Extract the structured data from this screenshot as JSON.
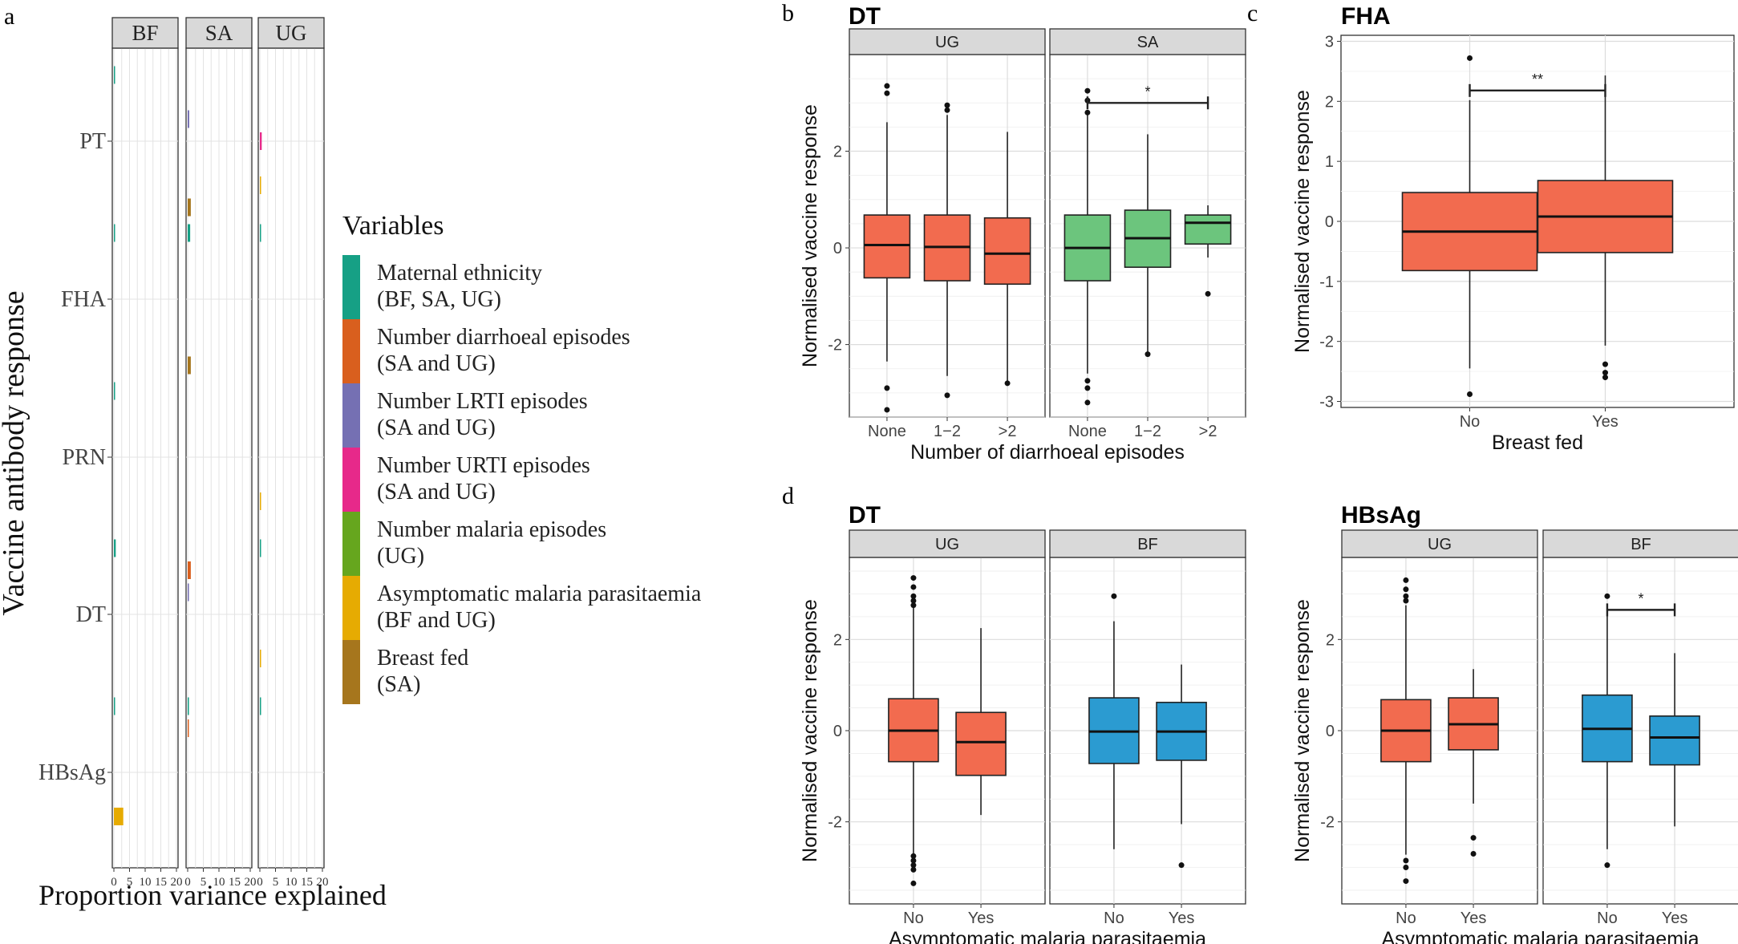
{
  "panel_labels": {
    "a": "a",
    "b": "b",
    "c": "c",
    "d": "d"
  },
  "colors": {
    "maternal_ethnicity": "#16a085",
    "diarrhoeal": "#d95f1e",
    "lrti": "#7570b3",
    "urti": "#e7298a",
    "malaria_episodes": "#66a61e",
    "asym_malaria": "#e6ab02",
    "breast_fed": "#a6761d",
    "box_red": "#f26b4f",
    "box_green": "#6cc57d",
    "box_blue": "#2b9bd1"
  },
  "chart_data": [
    {
      "id": "a",
      "type": "bar",
      "orientation": "horizontal",
      "facets": [
        "BF",
        "SA",
        "UG"
      ],
      "categories": [
        "PT",
        "FHA",
        "PRN",
        "DT",
        "HBsAg"
      ],
      "xlabel": "Proportion variance explained",
      "ylabel": "Vaccine antibody response",
      "xticks": [
        "0",
        "5",
        "10",
        "15",
        "20"
      ],
      "xlim": [
        0,
        20
      ],
      "legend_title": "Variables",
      "legend": [
        {
          "line1": "Maternal ethnicity",
          "line2": "(BF, SA, UG)",
          "color_key": "maternal_ethnicity"
        },
        {
          "line1": "Number diarrhoeal episodes",
          "line2": "(SA and UG)",
          "color_key": "diarrhoeal"
        },
        {
          "line1": "Number LRTI episodes",
          "line2": "(SA and UG)",
          "color_key": "lrti"
        },
        {
          "line1": "Number URTI episodes",
          "line2": "(SA and UG)",
          "color_key": "urti"
        },
        {
          "line1": "Number malaria episodes",
          "line2": "(UG)",
          "color_key": "malaria_episodes"
        },
        {
          "line1": "Asymptomatic malaria parasitaemia",
          "line2": "(BF and UG)",
          "color_key": "asym_malaria"
        },
        {
          "line1": "Breast fed",
          "line2": "(SA)",
          "color_key": "breast_fed"
        }
      ],
      "bars": [
        {
          "facet": "BF",
          "category": "PT",
          "var": "maternal_ethnicity",
          "value": 0.2
        },
        {
          "facet": "BF",
          "category": "FHA",
          "var": "maternal_ethnicity",
          "value": 0.2
        },
        {
          "facet": "BF",
          "category": "PRN",
          "var": "maternal_ethnicity",
          "value": 0.2
        },
        {
          "facet": "BF",
          "category": "DT",
          "var": "maternal_ethnicity",
          "value": 0.6
        },
        {
          "facet": "BF",
          "category": "HBsAg",
          "var": "maternal_ethnicity",
          "value": 0.2
        },
        {
          "facet": "BF",
          "category": "HBsAg",
          "var": "asym_malaria",
          "value": 3.0
        },
        {
          "facet": "SA",
          "category": "PT",
          "var": "lrti",
          "value": 0.5
        },
        {
          "facet": "SA",
          "category": "PT",
          "var": "breast_fed",
          "value": 1.0
        },
        {
          "facet": "SA",
          "category": "FHA",
          "var": "maternal_ethnicity",
          "value": 0.8
        },
        {
          "facet": "SA",
          "category": "FHA",
          "var": "breast_fed",
          "value": 1.0
        },
        {
          "facet": "SA",
          "category": "DT",
          "var": "diarrhoeal",
          "value": 1.0
        },
        {
          "facet": "SA",
          "category": "DT",
          "var": "lrti",
          "value": 0.4
        },
        {
          "facet": "SA",
          "category": "HBsAg",
          "var": "maternal_ethnicity",
          "value": 0.4
        },
        {
          "facet": "SA",
          "category": "HBsAg",
          "var": "diarrhoeal",
          "value": 0.3
        },
        {
          "facet": "UG",
          "category": "PT",
          "var": "urti",
          "value": 0.6
        },
        {
          "facet": "UG",
          "category": "PT",
          "var": "asym_malaria",
          "value": 0.2
        },
        {
          "facet": "UG",
          "category": "FHA",
          "var": "maternal_ethnicity",
          "value": 0.3
        },
        {
          "facet": "UG",
          "category": "PRN",
          "var": "asym_malaria",
          "value": 0.2
        },
        {
          "facet": "UG",
          "category": "DT",
          "var": "maternal_ethnicity",
          "value": 0.3
        },
        {
          "facet": "UG",
          "category": "DT",
          "var": "asym_malaria",
          "value": 0.2
        },
        {
          "facet": "UG",
          "category": "HBsAg",
          "var": "maternal_ethnicity",
          "value": 0.2
        }
      ]
    },
    {
      "id": "b",
      "type": "box",
      "title": "DT",
      "xlabel": "Number of diarrhoeal episodes",
      "ylabel": "Normalised vaccine response",
      "ylim": [
        -3.5,
        4.0
      ],
      "yticks": [
        -2,
        0,
        2
      ],
      "facets": [
        {
          "name": "UG",
          "color_key": "box_red",
          "categories": [
            "None",
            "1−2",
            ">2"
          ],
          "boxes": [
            {
              "q1": -0.62,
              "med": 0.06,
              "q3": 0.68,
              "lo": -2.35,
              "hi": 2.6,
              "out": [
                3.35,
                3.2,
                -2.9,
                -3.35
              ]
            },
            {
              "q1": -0.68,
              "med": 0.02,
              "q3": 0.68,
              "lo": -2.65,
              "hi": 2.75,
              "out": [
                2.95,
                2.85,
                -3.05
              ]
            },
            {
              "q1": -0.75,
              "med": -0.12,
              "q3": 0.62,
              "lo": -2.75,
              "hi": 2.4,
              "out": [
                -2.8
              ]
            }
          ]
        },
        {
          "name": "SA",
          "color_key": "box_green",
          "categories": [
            "None",
            "1−2",
            ">2"
          ],
          "boxes": [
            {
              "q1": -0.68,
              "med": 0.0,
              "q3": 0.68,
              "lo": -2.6,
              "hi": 2.75,
              "out": [
                3.25,
                3.05,
                2.8,
                -2.75,
                -2.9,
                -3.2
              ]
            },
            {
              "q1": -0.4,
              "med": 0.2,
              "q3": 0.78,
              "lo": -2.2,
              "hi": 2.35,
              "out": [
                -2.2
              ]
            },
            {
              "q1": 0.08,
              "med": 0.52,
              "q3": 0.68,
              "lo": -0.2,
              "hi": 0.88,
              "out": [
                -0.95
              ]
            }
          ]
        }
      ],
      "significance": [
        {
          "facet": "SA",
          "from": 0,
          "to": 2,
          "y": 3.0,
          "label": "*"
        }
      ]
    },
    {
      "id": "c",
      "type": "box",
      "title": "FHA",
      "xlabel": "Breast fed",
      "ylabel": "Normalised vaccine response",
      "ylim": [
        -3.1,
        3.1
      ],
      "yticks": [
        -3,
        -2,
        -1,
        0,
        1,
        2,
        3
      ],
      "facets": [
        {
          "name": "",
          "color_key": "box_red",
          "categories": [
            "No",
            "Yes"
          ],
          "boxes": [
            {
              "q1": -0.82,
              "med": -0.17,
              "q3": 0.48,
              "lo": -2.45,
              "hi": 2.02,
              "out": [
                2.72,
                -2.88
              ]
            },
            {
              "q1": -0.52,
              "med": 0.08,
              "q3": 0.68,
              "lo": -2.07,
              "hi": 2.43,
              "out": [
                -2.38,
                -2.52,
                -2.6
              ]
            }
          ]
        }
      ],
      "significance": [
        {
          "facet": "",
          "from": 0,
          "to": 1,
          "y": 2.18,
          "label": "**"
        }
      ]
    },
    {
      "id": "d1",
      "type": "box",
      "title": "DT",
      "xlabel": "Asymptomatic malaria parasitaemia",
      "ylabel": "Normalised vaccine response",
      "ylim": [
        -3.8,
        3.8
      ],
      "yticks": [
        -2,
        0,
        2
      ],
      "facets": [
        {
          "name": "UG",
          "color_key": "box_red",
          "categories": [
            "No",
            "Yes"
          ],
          "boxes": [
            {
              "q1": -0.68,
              "med": 0.0,
              "q3": 0.7,
              "lo": -2.7,
              "hi": 2.72,
              "out": [
                3.35,
                3.15,
                2.95,
                2.85,
                2.75,
                -2.75,
                -2.85,
                -2.95,
                -3.05,
                -3.35
              ]
            },
            {
              "q1": -0.98,
              "med": -0.25,
              "q3": 0.4,
              "lo": -1.85,
              "hi": 2.25,
              "out": []
            }
          ]
        },
        {
          "name": "BF",
          "color_key": "box_blue",
          "categories": [
            "No",
            "Yes"
          ],
          "boxes": [
            {
              "q1": -0.72,
              "med": -0.02,
              "q3": 0.72,
              "lo": -2.6,
              "hi": 2.4,
              "out": [
                2.95
              ]
            },
            {
              "q1": -0.65,
              "med": -0.02,
              "q3": 0.62,
              "lo": -2.05,
              "hi": 1.45,
              "out": [
                -2.95
              ]
            }
          ]
        }
      ],
      "significance": []
    },
    {
      "id": "d2",
      "type": "box",
      "title": "HBsAg",
      "xlabel": "Asymptomatic malaria parasitaemia",
      "ylabel": "Normalised vaccine response",
      "ylim": [
        -3.8,
        3.8
      ],
      "yticks": [
        -2,
        0,
        2
      ],
      "facets": [
        {
          "name": "UG",
          "color_key": "box_red",
          "categories": [
            "No",
            "Yes"
          ],
          "boxes": [
            {
              "q1": -0.68,
              "med": 0.0,
              "q3": 0.68,
              "lo": -2.72,
              "hi": 2.75,
              "out": [
                3.3,
                3.1,
                2.95,
                2.85,
                -2.85,
                -3.0,
                -3.3
              ]
            },
            {
              "q1": -0.42,
              "med": 0.14,
              "q3": 0.72,
              "lo": -1.6,
              "hi": 1.35,
              "out": [
                -2.35,
                -2.7
              ]
            }
          ]
        },
        {
          "name": "BF",
          "color_key": "box_blue",
          "categories": [
            "No",
            "Yes"
          ],
          "boxes": [
            {
              "q1": -0.68,
              "med": 0.04,
              "q3": 0.78,
              "lo": -2.6,
              "hi": 2.55,
              "out": [
                2.95,
                -2.95
              ]
            },
            {
              "q1": -0.75,
              "med": -0.15,
              "q3": 0.32,
              "lo": -2.1,
              "hi": 1.7,
              "out": []
            }
          ]
        }
      ],
      "significance": [
        {
          "facet": "BF",
          "from": 0,
          "to": 1,
          "y": 2.65,
          "label": "*"
        }
      ]
    }
  ]
}
